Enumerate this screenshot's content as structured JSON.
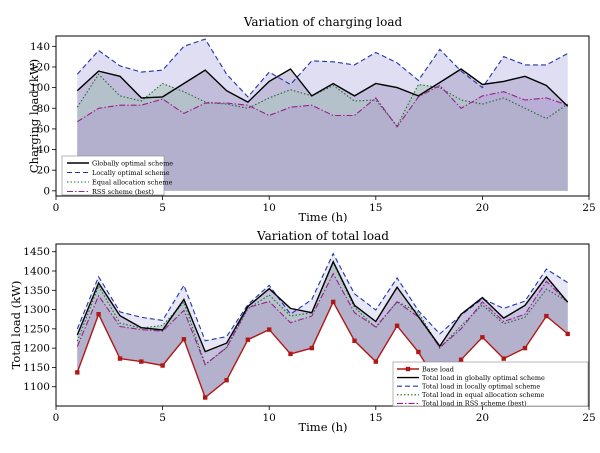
{
  "chart_data": [
    {
      "type": "area",
      "title": "Variation of charging load",
      "xlabel": "Time (h)",
      "ylabel": "Charging load (kW)",
      "xlim": [
        0,
        25
      ],
      "ylim": [
        -5,
        150
      ],
      "xticks": [
        "0",
        "5",
        "10",
        "15",
        "20",
        "25"
      ],
      "yticks": [
        "0",
        "20",
        "40",
        "60",
        "80",
        "100",
        "120",
        "140"
      ],
      "xtick_values": [
        0,
        5,
        10,
        15,
        20,
        25
      ],
      "ytick_values": [
        0,
        20,
        40,
        60,
        80,
        100,
        120,
        140
      ],
      "grid": false,
      "legend_position": "bottom-left",
      "x": [
        1,
        2,
        3,
        4,
        5,
        6,
        7,
        8,
        9,
        10,
        11,
        12,
        13,
        14,
        15,
        16,
        17,
        18,
        19,
        20,
        21,
        22,
        23,
        24
      ],
      "series": [
        {
          "name": "Globally optimal scheme",
          "color": "#000000",
          "dash": "solid",
          "values": [
            97,
            116,
            111,
            90,
            91,
            104,
            117,
            97,
            86,
            106,
            118,
            92,
            104,
            92,
            104,
            100,
            92,
            105,
            118,
            103,
            106,
            111,
            102,
            82
          ]
        },
        {
          "name": "Locally optimal scheme",
          "color": "#2233aa",
          "dash": "dashed",
          "values": [
            113,
            136,
            121,
            115,
            117,
            140,
            147,
            113,
            91,
            115,
            103,
            126,
            125,
            122,
            134,
            124,
            107,
            137,
            116,
            100,
            130,
            122,
            122,
            133
          ]
        },
        {
          "name": "Equal allocation scheme",
          "color": "#1a6b2a",
          "dash": "dotted",
          "values": [
            81,
            113,
            92,
            87,
            104,
            96,
            86,
            84,
            80,
            90,
            98,
            92,
            102,
            87,
            88,
            63,
            103,
            100,
            88,
            84,
            90,
            80,
            70,
            84
          ]
        },
        {
          "name": "RSS scheme (best)",
          "color": "#991f8e",
          "dash": "dashdot",
          "values": [
            67,
            80,
            83,
            83,
            89,
            75,
            85,
            85,
            83,
            73,
            81,
            83,
            73,
            73,
            90,
            62,
            91,
            102,
            80,
            92,
            96,
            88,
            90,
            83
          ]
        }
      ]
    },
    {
      "type": "area",
      "title": "Variation of total load",
      "xlabel": "Time (h)",
      "ylabel": "Total load (kW)",
      "xlim": [
        0,
        25
      ],
      "ylim": [
        1050,
        1470
      ],
      "xticks": [
        "0",
        "5",
        "10",
        "15",
        "20",
        "25"
      ],
      "yticks": [
        "1100",
        "1150",
        "1200",
        "1250",
        "1300",
        "1350",
        "1400",
        "1450"
      ],
      "xtick_values": [
        0,
        5,
        10,
        15,
        20,
        25
      ],
      "ytick_values": [
        1100,
        1150,
        1200,
        1250,
        1300,
        1350,
        1400,
        1450
      ],
      "grid": false,
      "legend_position": "bottom-right",
      "x": [
        1,
        2,
        3,
        4,
        5,
        6,
        7,
        8,
        9,
        10,
        11,
        12,
        13,
        14,
        15,
        16,
        17,
        18,
        19,
        20,
        21,
        22,
        23,
        24
      ],
      "series": [
        {
          "name": "Base load",
          "color": "#b01818",
          "dash": "solid",
          "marker": "square",
          "values": [
            1137,
            1288,
            1173,
            1165,
            1155,
            1223,
            1072,
            1117,
            1222,
            1248,
            1185,
            1200,
            1320,
            1219,
            1165,
            1258,
            1190,
            1100,
            1170,
            1228,
            1173,
            1200,
            1283,
            1237
          ]
        },
        {
          "name": "Total load in globally optimal scheme",
          "color": "#000000",
          "dash": "solid",
          "values": [
            1234,
            1369,
            1284,
            1253,
            1247,
            1326,
            1191,
            1213,
            1308,
            1354,
            1303,
            1292,
            1424,
            1311,
            1269,
            1358,
            1282,
            1205,
            1288,
            1331,
            1278,
            1311,
            1385,
            1319
          ]
        },
        {
          "name": "Total load in locally optimal scheme",
          "color": "#2233aa",
          "dash": "dashed",
          "values": [
            1250,
            1385,
            1294,
            1280,
            1272,
            1363,
            1219,
            1230,
            1313,
            1363,
            1288,
            1326,
            1445,
            1341,
            1299,
            1382,
            1297,
            1237,
            1286,
            1328,
            1303,
            1322,
            1405,
            1370
          ]
        },
        {
          "name": "Total load in equal allocation scheme",
          "color": "#1a6b2a",
          "dash": "dotted",
          "values": [
            1218,
            1361,
            1265,
            1252,
            1259,
            1319,
            1158,
            1201,
            1302,
            1338,
            1283,
            1292,
            1422,
            1306,
            1253,
            1321,
            1293,
            1200,
            1258,
            1312,
            1263,
            1280,
            1353,
            1321
          ]
        },
        {
          "name": "Total load in RSS scheme (best)",
          "color": "#991f8e",
          "dash": "dashdot",
          "values": [
            1204,
            1336,
            1256,
            1248,
            1244,
            1298,
            1157,
            1202,
            1305,
            1321,
            1266,
            1283,
            1393,
            1292,
            1255,
            1320,
            1281,
            1202,
            1250,
            1320,
            1269,
            1288,
            1373,
            1320
          ]
        }
      ]
    }
  ]
}
